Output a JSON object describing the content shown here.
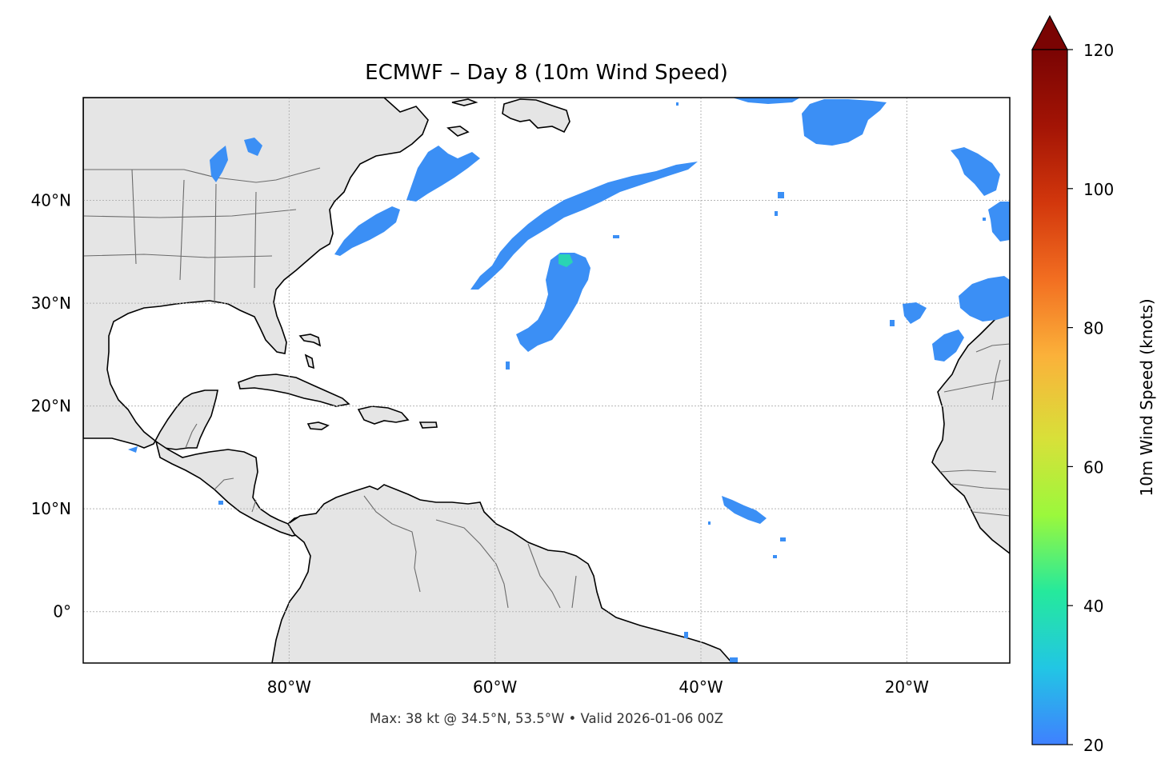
{
  "map": {
    "title": "ECMWF – Day 8 (10m Wind Speed)",
    "footer": "Max: 38 kt @ 34.5°N, 53.5°W • Valid 2026-01-06 00Z",
    "extent": {
      "lon": [
        -100,
        -10
      ],
      "lat": [
        -5,
        50
      ]
    },
    "lon_ticks": [
      {
        "value": -80,
        "label": "80°W"
      },
      {
        "value": -60,
        "label": "60°W"
      },
      {
        "value": -40,
        "label": "40°W"
      },
      {
        "value": -20,
        "label": "20°W"
      }
    ],
    "lat_ticks": [
      {
        "value": 40,
        "label": "40°N"
      },
      {
        "value": 30,
        "label": "30°N"
      },
      {
        "value": 20,
        "label": "20°N"
      },
      {
        "value": 10,
        "label": "10°N"
      },
      {
        "value": 0,
        "label": "0°"
      }
    ],
    "gridlines": true,
    "colors": {
      "land": "#e5e5e5",
      "coast": "#000000",
      "borders": "#6b6b6b",
      "wind_low": "#3b8ff5",
      "wind_mid": "#39a6f0",
      "wind_high": "#2ad3b4"
    },
    "wind_max": {
      "value_kt": 38,
      "lat": 34.5,
      "lon": -53.5
    }
  },
  "colorbar": {
    "label": "10m Wind Speed (knots)",
    "min": 20,
    "max": 120,
    "extend": "max",
    "ticks": [
      {
        "value": 20,
        "label": "20"
      },
      {
        "value": 40,
        "label": "40"
      },
      {
        "value": 60,
        "label": "60"
      },
      {
        "value": 80,
        "label": "80"
      },
      {
        "value": 100,
        "label": "100"
      },
      {
        "value": 120,
        "label": "120"
      }
    ],
    "stops": [
      "#3f80ff",
      "#22c6e4",
      "#25e99c",
      "#9bf83c",
      "#d8e039",
      "#fbb13a",
      "#f26e21",
      "#d2370c",
      "#a31405",
      "#7a0403"
    ]
  }
}
